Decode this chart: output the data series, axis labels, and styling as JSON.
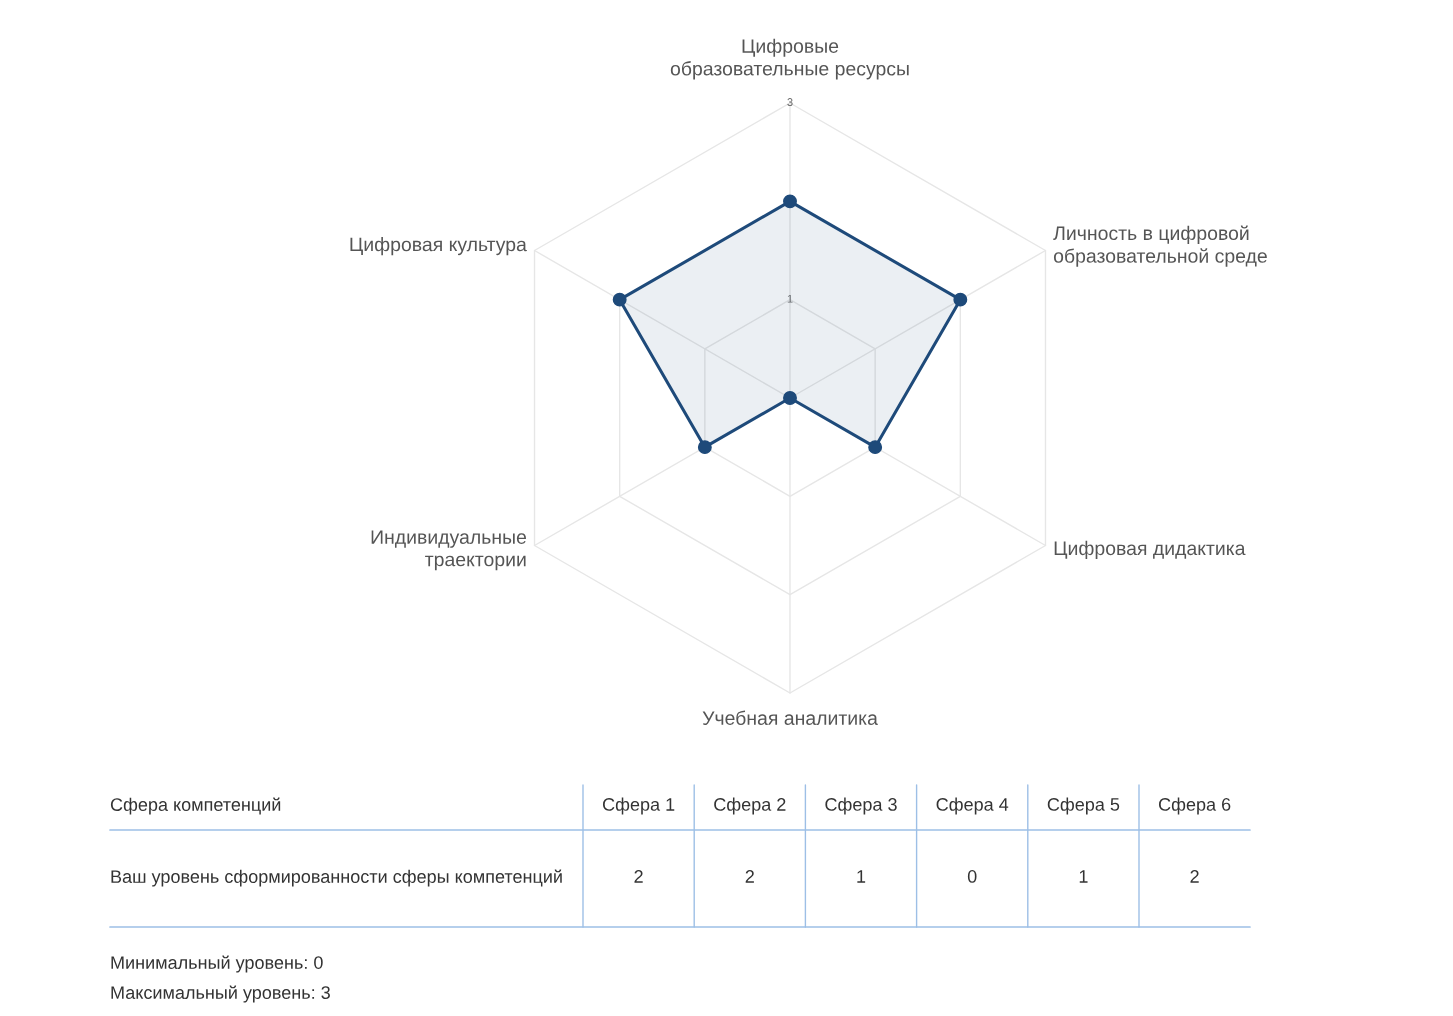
{
  "chart_data": {
    "type": "radar",
    "categories": [
      "Цифровые\nобразовательные ресурсы",
      "Личность в цифровой\nобразовательной среде",
      "Цифровая дидактика",
      "Учебная аналитика",
      "Индивидуальные\nтраектории",
      "Цифровая культура"
    ],
    "series": [
      {
        "color": "#1e4a7a",
        "values": [
          2,
          2,
          1,
          0,
          1,
          2
        ]
      }
    ],
    "ylim": [
      0,
      3
    ],
    "yticks": [
      1,
      3
    ],
    "marker": "circle",
    "line_style": "solid",
    "grid": true,
    "legend": false,
    "annotations": [
      "Сфера компетенций",
      "Ваш уровень сформированности сферы компетенций",
      "Сфера 1",
      "Сфера 2",
      "Сфера 3",
      "Сфера 4",
      "Сфера 5",
      "Сфера 6",
      "2",
      "2",
      "1",
      "0",
      "1",
      "2",
      "Минимальный уровень: 0",
      "Максимальный уровень: 3"
    ]
  }
}
